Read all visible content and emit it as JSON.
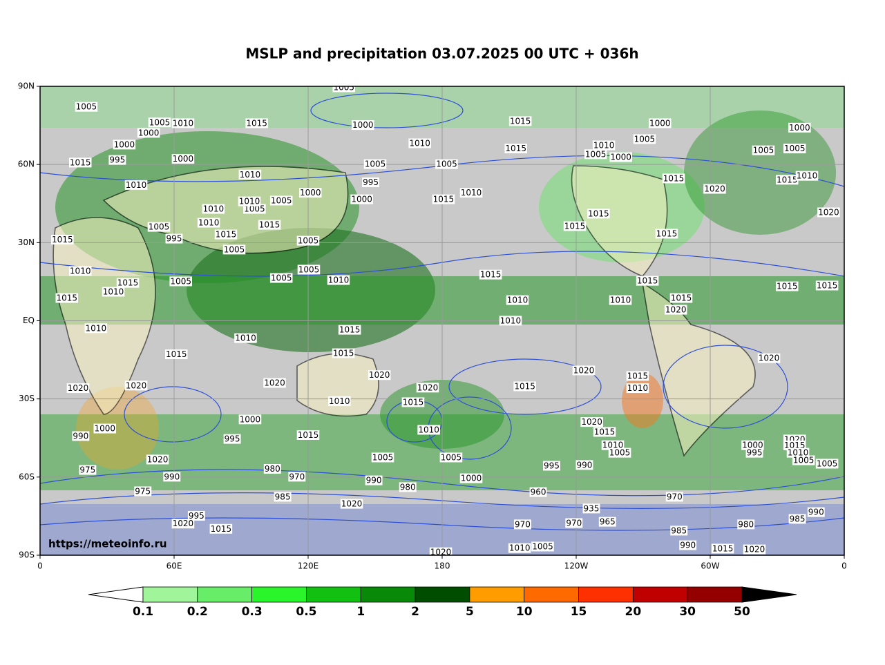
{
  "map_data": {
    "type": "map",
    "title": "MSLP and precipitation 03.07.2025 00 UTC + 036h",
    "watermark": "https://meteoinfo.ru",
    "xlim": [
      0,
      360
    ],
    "ylim": [
      -90,
      90
    ],
    "xticks": [
      0,
      {
        "value": 60,
        "label": "60E"
      },
      {
        "value": 120,
        "label": "120E"
      },
      180,
      {
        "value": 240,
        "label": "120W"
      },
      {
        "value": 300,
        "label": "60W"
      },
      {
        "value": 360,
        "label": "0"
      }
    ],
    "yticks": [
      {
        "value": 90,
        "label": "90N"
      },
      {
        "value": 60,
        "label": "60N"
      },
      {
        "value": 30,
        "label": "30N"
      },
      {
        "value": 0,
        "label": "EQ"
      },
      {
        "value": -30,
        "label": "30S"
      },
      {
        "value": -60,
        "label": "60S"
      },
      {
        "value": -90,
        "label": "90S"
      }
    ],
    "grid": true,
    "isobar_labels": [
      {
        "value": 1005,
        "lon": 20.7,
        "lat": 82
      },
      {
        "value": 1015,
        "lon": 97,
        "lat": 75.7
      },
      {
        "value": 1000,
        "lon": 64,
        "lat": 62
      },
      {
        "value": 1010,
        "lon": 43,
        "lat": 52
      },
      {
        "value": 1010,
        "lon": 94,
        "lat": 56
      },
      {
        "value": 1015,
        "lon": 10,
        "lat": 31
      },
      {
        "value": 1010,
        "lon": 18,
        "lat": 19
      },
      {
        "value": 1005,
        "lon": 63,
        "lat": 15
      },
      {
        "value": 1015,
        "lon": 12,
        "lat": 8.6
      },
      {
        "value": 1010,
        "lon": 25,
        "lat": -3
      },
      {
        "value": 1015,
        "lon": 61,
        "lat": -13
      },
      {
        "value": 1020,
        "lon": 17,
        "lat": -26
      },
      {
        "value": 1020,
        "lon": 43,
        "lat": -25
      },
      {
        "value": 1000,
        "lon": 29,
        "lat": -41.5
      },
      {
        "value": 995,
        "lon": 86,
        "lat": -45.5
      },
      {
        "value": 1000,
        "lon": 94,
        "lat": -38
      },
      {
        "value": 1020,
        "lon": 105,
        "lat": -24
      },
      {
        "value": 1015,
        "lon": 120,
        "lat": -44
      },
      {
        "value": 980,
        "lon": 104,
        "lat": -57
      },
      {
        "value": 970,
        "lon": 115,
        "lat": -60
      },
      {
        "value": 985,
        "lon": 108.6,
        "lat": -67.7
      },
      {
        "value": 1020,
        "lon": 52.6,
        "lat": -53.4
      },
      {
        "value": 990,
        "lon": 59,
        "lat": -60
      },
      {
        "value": 975,
        "lon": 46,
        "lat": -65.6
      },
      {
        "value": 995,
        "lon": 70,
        "lat": -75
      },
      {
        "value": 1020,
        "lon": 64,
        "lat": -78
      },
      {
        "value": 1015,
        "lon": 81,
        "lat": -80
      },
      {
        "value": 1010,
        "lon": 92,
        "lat": -6.8
      },
      {
        "value": 1010,
        "lon": 133.6,
        "lat": 15.5
      },
      {
        "value": 1005,
        "lon": 120,
        "lat": 30.6
      },
      {
        "value": 1000,
        "lon": 121,
        "lat": 49
      },
      {
        "value": 1005,
        "lon": 108,
        "lat": 46
      },
      {
        "value": 1000,
        "lon": 144,
        "lat": 46.5
      },
      {
        "value": 995,
        "lon": 148,
        "lat": 53
      },
      {
        "value": 1005,
        "lon": 150,
        "lat": 60
      },
      {
        "value": 1000,
        "lon": 144.5,
        "lat": 75
      },
      {
        "value": 1005,
        "lon": 136,
        "lat": 89.5
      },
      {
        "value": 1010,
        "lon": 170,
        "lat": 68
      },
      {
        "value": 1005,
        "lon": 182,
        "lat": 60
      },
      {
        "value": 1015,
        "lon": 180.6,
        "lat": 46.5
      },
      {
        "value": 1010,
        "lon": 193,
        "lat": 49
      },
      {
        "value": 1015,
        "lon": 215,
        "lat": 76.5
      },
      {
        "value": 1015,
        "lon": 213,
        "lat": 66
      },
      {
        "value": 1015,
        "lon": 201.7,
        "lat": 17.6
      },
      {
        "value": 1010,
        "lon": 213.7,
        "lat": 7.8
      },
      {
        "value": 1010,
        "lon": 210.6,
        "lat": -0.1
      },
      {
        "value": 1015,
        "lon": 138.6,
        "lat": -3.6
      },
      {
        "value": 1015,
        "lon": 135.8,
        "lat": -12.6
      },
      {
        "value": 1020,
        "lon": 151.9,
        "lat": -21
      },
      {
        "value": 1010,
        "lon": 134,
        "lat": -31
      },
      {
        "value": 1015,
        "lon": 167,
        "lat": -31.4
      },
      {
        "value": 1020,
        "lon": 173.5,
        "lat": -25.8
      },
      {
        "value": 1010,
        "lon": 174,
        "lat": -42
      },
      {
        "value": 1005,
        "lon": 153.4,
        "lat": -52.6
      },
      {
        "value": 1005,
        "lon": 184,
        "lat": -52.6
      },
      {
        "value": 1000,
        "lon": 193,
        "lat": -60.6
      },
      {
        "value": 990,
        "lon": 149.4,
        "lat": -61.4
      },
      {
        "value": 980,
        "lon": 164.6,
        "lat": -64
      },
      {
        "value": 1020,
        "lon": 139.5,
        "lat": -70.4
      },
      {
        "value": 1015,
        "lon": 217,
        "lat": -25.3
      },
      {
        "value": 1020,
        "lon": 243.4,
        "lat": -19.2
      },
      {
        "value": 1020,
        "lon": 247,
        "lat": -39
      },
      {
        "value": 1015,
        "lon": 252.7,
        "lat": -42.8
      },
      {
        "value": 1010,
        "lon": 256.4,
        "lat": -47.9
      },
      {
        "value": 1005,
        "lon": 259.5,
        "lat": -50.8
      },
      {
        "value": 990,
        "lon": 243.7,
        "lat": -55.5
      },
      {
        "value": 995,
        "lon": 229,
        "lat": -55.8
      },
      {
        "value": 960,
        "lon": 223,
        "lat": -65.9
      },
      {
        "value": 970,
        "lon": 216,
        "lat": -78.3
      },
      {
        "value": 970,
        "lon": 239,
        "lat": -77.8
      },
      {
        "value": 935,
        "lon": 246.8,
        "lat": -72.2
      },
      {
        "value": 965,
        "lon": 254,
        "lat": -77.3
      },
      {
        "value": 970,
        "lon": 284,
        "lat": -67.7
      },
      {
        "value": 985,
        "lon": 286,
        "lat": -80.7
      },
      {
        "value": 990,
        "lon": 290,
        "lat": -86.3
      },
      {
        "value": 1015,
        "lon": 267.5,
        "lat": -21.3
      },
      {
        "value": 1010,
        "lon": 267.5,
        "lat": -26
      },
      {
        "value": 1010,
        "lon": 259.8,
        "lat": 7.8
      },
      {
        "value": 1015,
        "lon": 271.9,
        "lat": 15.2
      },
      {
        "value": 1015,
        "lon": 287,
        "lat": 8.6
      },
      {
        "value": 1020,
        "lon": 284.6,
        "lat": 4.1
      },
      {
        "value": 1015,
        "lon": 239.4,
        "lat": 36.2
      },
      {
        "value": 1015,
        "lon": 250,
        "lat": 41
      },
      {
        "value": 1005,
        "lon": 248.7,
        "lat": 63.8
      },
      {
        "value": 1010,
        "lon": 252.4,
        "lat": 67.2
      },
      {
        "value": 1000,
        "lon": 260,
        "lat": 62.7
      },
      {
        "value": 1000,
        "lon": 277.5,
        "lat": 75.7
      },
      {
        "value": 1005,
        "lon": 270.6,
        "lat": 69.6
      },
      {
        "value": 1015,
        "lon": 283.6,
        "lat": 54.5
      },
      {
        "value": 1020,
        "lon": 302,
        "lat": 50.5
      },
      {
        "value": 1015,
        "lon": 280.5,
        "lat": 33.3
      },
      {
        "value": 1000,
        "lon": 340,
        "lat": 74
      },
      {
        "value": 1005,
        "lon": 323.8,
        "lat": 65.3
      },
      {
        "value": 1005,
        "lon": 337.8,
        "lat": 66
      },
      {
        "value": 1015,
        "lon": 334.4,
        "lat": 54
      },
      {
        "value": 1010,
        "lon": 343.3,
        "lat": 55.5
      },
      {
        "value": 1020,
        "lon": 353,
        "lat": 41.5
      },
      {
        "value": 1015,
        "lon": 334.4,
        "lat": 13.1
      },
      {
        "value": 1015,
        "lon": 352.3,
        "lat": 13.4
      },
      {
        "value": 1020,
        "lon": 326.3,
        "lat": -14.5
      },
      {
        "value": 1000,
        "lon": 319,
        "lat": -47.9
      },
      {
        "value": 995,
        "lon": 319.8,
        "lat": -50.8
      },
      {
        "value": 1020,
        "lon": 337.8,
        "lat": -45.7
      },
      {
        "value": 1015,
        "lon": 337.8,
        "lat": -48
      },
      {
        "value": 1010,
        "lon": 339.3,
        "lat": -50.8
      },
      {
        "value": 1005,
        "lon": 341.8,
        "lat": -53.7
      },
      {
        "value": 1005,
        "lon": 352.3,
        "lat": -55
      },
      {
        "value": 985,
        "lon": 339,
        "lat": -76.2
      },
      {
        "value": 990,
        "lon": 347.4,
        "lat": -73.6
      },
      {
        "value": 980,
        "lon": 316,
        "lat": -78.3
      },
      {
        "value": 1020,
        "lon": 319.8,
        "lat": -87.9
      },
      {
        "value": 1015,
        "lon": 305.6,
        "lat": -87.6
      },
      {
        "value": 1005,
        "lon": 225,
        "lat": -86.8
      },
      {
        "value": 1010,
        "lon": 214.7,
        "lat": -87.4
      },
      {
        "value": 1020,
        "lon": 179.4,
        "lat": -89
      },
      {
        "value": 975,
        "lon": 21.3,
        "lat": -57.4
      },
      {
        "value": 990,
        "lon": 18.2,
        "lat": -44.4
      },
      {
        "value": 1005,
        "lon": 53.5,
        "lat": 76
      },
      {
        "value": 1010,
        "lon": 64,
        "lat": 75.7
      },
      {
        "value": 1000,
        "lon": 48.6,
        "lat": 72
      },
      {
        "value": 1000,
        "lon": 37.7,
        "lat": 67.5
      },
      {
        "value": 995,
        "lon": 34.6,
        "lat": 61.6
      },
      {
        "value": 1015,
        "lon": 18,
        "lat": 60.6
      },
      {
        "value": 1005,
        "lon": 53.2,
        "lat": 35.9
      },
      {
        "value": 995,
        "lon": 60,
        "lat": 31.4
      },
      {
        "value": 1010,
        "lon": 75.5,
        "lat": 37.5
      },
      {
        "value": 1010,
        "lon": 77.6,
        "lat": 42.8
      },
      {
        "value": 1005,
        "lon": 96,
        "lat": 42.8
      },
      {
        "value": 1010,
        "lon": 93.7,
        "lat": 45.7
      },
      {
        "value": 1015,
        "lon": 83.2,
        "lat": 33
      },
      {
        "value": 1015,
        "lon": 102.7,
        "lat": 36.7
      },
      {
        "value": 1005,
        "lon": 86.9,
        "lat": 27.2
      },
      {
        "value": 1005,
        "lon": 108,
        "lat": 16.3
      },
      {
        "value": 1005,
        "lon": 120.3,
        "lat": 19.5
      },
      {
        "value": 1010,
        "lon": 32.8,
        "lat": 11
      },
      {
        "value": 1015,
        "lon": 39.3,
        "lat": 14.4
      }
    ],
    "colorbar": {
      "levels": [
        0.1,
        0.2,
        0.3,
        0.5,
        1,
        2,
        5,
        10,
        15,
        20,
        30,
        50
      ],
      "colors": [
        "#a0f59a",
        "#68ed68",
        "#2af52a",
        "#12c012",
        "#088a08",
        "#004d00",
        "#ff9c00",
        "#ff6a00",
        "#ff3000",
        "#c00000",
        "#940000"
      ],
      "under_color": "#ffffff",
      "over_color": "#000000"
    }
  }
}
